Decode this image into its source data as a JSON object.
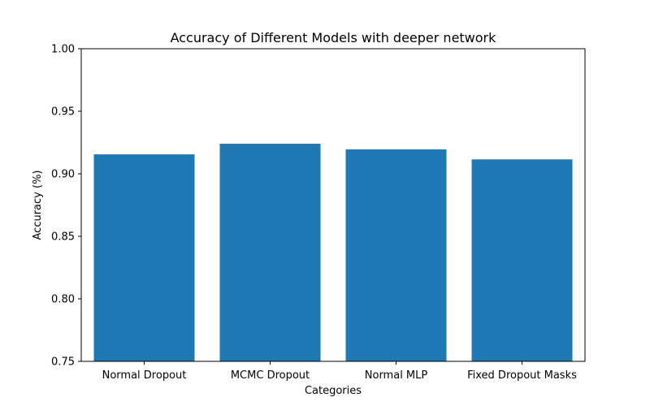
{
  "chart_data": {
    "type": "bar",
    "title": "Accuracy of Different Models with deeper network",
    "xlabel": "Categories",
    "ylabel": "Accuracy (%)",
    "categories": [
      "Normal Dropout",
      "MCMC Dropout",
      "Normal MLP",
      "Fixed Dropout Masks"
    ],
    "values": [
      0.9155,
      0.924,
      0.9195,
      0.9115
    ],
    "ylim": [
      0.75,
      1.0
    ],
    "yticks": [
      "0.75",
      "0.80",
      "0.85",
      "0.90",
      "0.95",
      "1.00"
    ],
    "bar_color": "#1f77b4",
    "grid": false,
    "legend": "none"
  }
}
